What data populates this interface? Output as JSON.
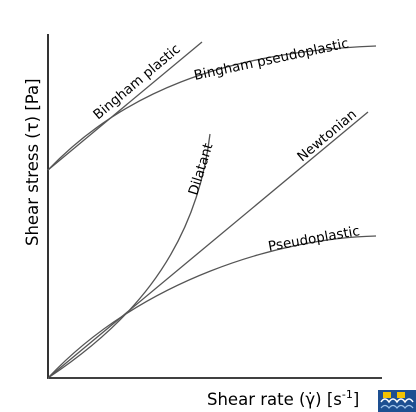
{
  "axes": {
    "x_title_main": "Shear rate (γ̇) [s",
    "x_title_sup": "-1",
    "x_title_end": "]",
    "y_title": "Shear stress (τ) [Pa]"
  },
  "curves": [
    {
      "name": "Bingham plastic",
      "label": "Bingham plastic"
    },
    {
      "name": "Bingham pseudoplastic",
      "label": "Bingham pseudoplastic"
    },
    {
      "name": "Dilatant",
      "label": "Dilatant"
    },
    {
      "name": "Newtonian",
      "label": "Newtonian"
    },
    {
      "name": "Pseudoplastic",
      "label": "Pseudoplastic"
    }
  ],
  "logo_icon": "university-crest-icon"
}
